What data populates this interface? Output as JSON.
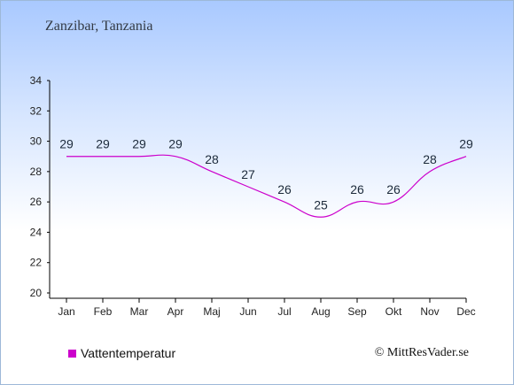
{
  "header": {
    "title": "Zanzibar, Tanzania"
  },
  "legend": {
    "label": "Vattentemperatur",
    "color": "#cc00cc"
  },
  "footer": {
    "copyright": "© MittResVader.se"
  },
  "colors": {
    "line": "#cc00cc",
    "axis": "#000000",
    "text": "#1c2a3a"
  },
  "chart_data": {
    "type": "line",
    "title": "Zanzibar, Tanzania",
    "categories": [
      "Jan",
      "Feb",
      "Mar",
      "Apr",
      "Maj",
      "Jun",
      "Jul",
      "Aug",
      "Sep",
      "Okt",
      "Nov",
      "Dec"
    ],
    "series": [
      {
        "name": "Vattentemperatur",
        "values": [
          29,
          29,
          29,
          29,
          28,
          27,
          26,
          25,
          26,
          26,
          28,
          29
        ]
      }
    ],
    "ylim": [
      20,
      34
    ],
    "yticks": [
      20,
      22,
      24,
      26,
      28,
      30,
      32,
      34
    ],
    "grid": false,
    "legend_position": "bottom-left"
  }
}
